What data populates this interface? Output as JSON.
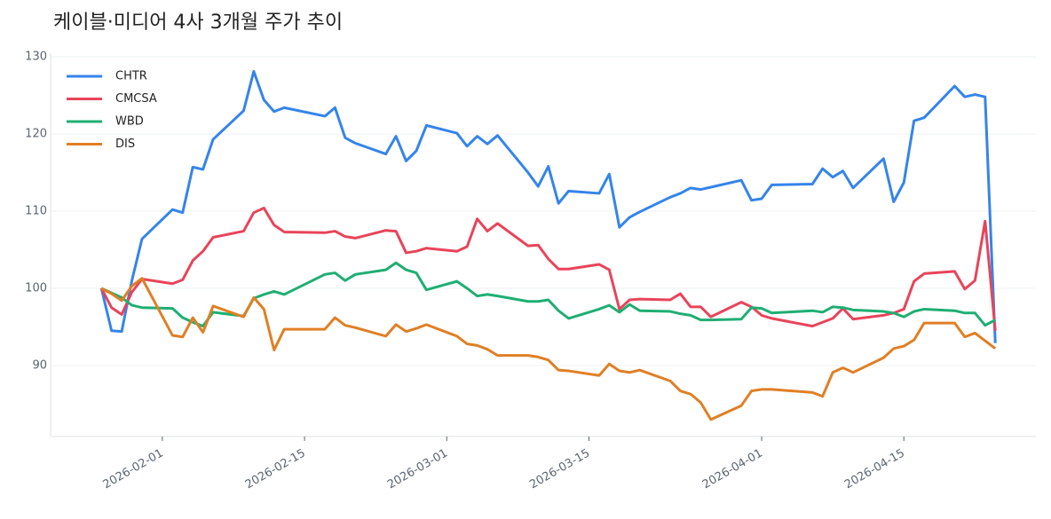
{
  "chart_data": {
    "type": "line",
    "title": "케이블·미디어 4사 3개월 주가 추이",
    "x": [
      "2026-01-26",
      "2026-01-27",
      "2026-01-28",
      "2026-01-29",
      "2026-01-30",
      "2026-02-02",
      "2026-02-03",
      "2026-02-04",
      "2026-02-05",
      "2026-02-06",
      "2026-02-09",
      "2026-02-10",
      "2026-02-11",
      "2026-02-12",
      "2026-02-13",
      "2026-02-17",
      "2026-02-18",
      "2026-02-19",
      "2026-02-20",
      "2026-02-23",
      "2026-02-24",
      "2026-02-25",
      "2026-02-26",
      "2026-02-27",
      "2026-03-02",
      "2026-03-03",
      "2026-03-04",
      "2026-03-05",
      "2026-03-06",
      "2026-03-09",
      "2026-03-10",
      "2026-03-11",
      "2026-03-12",
      "2026-03-13",
      "2026-03-16",
      "2026-03-17",
      "2026-03-18",
      "2026-03-19",
      "2026-03-20",
      "2026-03-23",
      "2026-03-24",
      "2026-03-25",
      "2026-03-26",
      "2026-03-27",
      "2026-03-30",
      "2026-03-31",
      "2026-04-01",
      "2026-04-02",
      "2026-04-06",
      "2026-04-07",
      "2026-04-08",
      "2026-04-09",
      "2026-04-10",
      "2026-04-13",
      "2026-04-14",
      "2026-04-15",
      "2026-04-16",
      "2026-04-17",
      "2026-04-20",
      "2026-04-21",
      "2026-04-22",
      "2026-04-23",
      "2026-04-24"
    ],
    "series": [
      {
        "name": "CHTR",
        "color": "#3584ea",
        "values": [
          100,
          94.5,
          94.4,
          101,
          106.4,
          110.2,
          109.8,
          115.7,
          115.4,
          119.3,
          123,
          128.1,
          124.4,
          122.9,
          123.4,
          122.3,
          123.4,
          119.5,
          118.8,
          117.4,
          119.7,
          116.5,
          117.8,
          121.1,
          120.1,
          118.4,
          119.7,
          118.7,
          119.8,
          115,
          113.2,
          115.8,
          111,
          112.6,
          112.3,
          114.8,
          107.9,
          109.2,
          109.9,
          111.8,
          112.3,
          113,
          112.8,
          113.1,
          114,
          111.4,
          111.6,
          113.4,
          113.5,
          115.5,
          114.4,
          115.2,
          113,
          116.8,
          111.2,
          113.7,
          121.7,
          122.1,
          126.2,
          124.8,
          125.1,
          124.8,
          92.9
        ]
      },
      {
        "name": "CMCSA",
        "color": "#e8445a",
        "values": [
          100,
          97.5,
          96.6,
          99.5,
          101.2,
          100.6,
          101.1,
          103.6,
          104.8,
          106.6,
          107.4,
          109.8,
          110.4,
          108.2,
          107.3,
          107.2,
          107.4,
          106.7,
          106.5,
          107.5,
          107.4,
          104.6,
          104.8,
          105.2,
          104.8,
          105.4,
          109,
          107.4,
          108.4,
          105.5,
          105.6,
          103.8,
          102.5,
          102.5,
          103.1,
          102.4,
          97.3,
          98.5,
          98.6,
          98.5,
          99.3,
          97.6,
          97.6,
          96.3,
          98.2,
          97.6,
          96.5,
          96.1,
          95.1,
          95.6,
          96.1,
          97.4,
          96,
          96.5,
          96.8,
          97.3,
          100.9,
          101.9,
          102.2,
          99.9,
          101,
          108.7,
          94.5
        ]
      },
      {
        "name": "WBD",
        "color": "#1fae72",
        "values": [
          100,
          99.4,
          98.8,
          97.8,
          97.5,
          97.4,
          96.2,
          95.6,
          95.1,
          96.9,
          96.4,
          98.7,
          99.2,
          99.6,
          99.2,
          101.8,
          102,
          101,
          101.8,
          102.4,
          103.3,
          102.4,
          102,
          99.8,
          100.9,
          100,
          99,
          99.2,
          99,
          98.3,
          98.3,
          98.5,
          97.1,
          96.1,
          97.3,
          97.8,
          96.9,
          97.9,
          97.1,
          97,
          96.7,
          96.5,
          95.9,
          95.9,
          96,
          97.5,
          97.4,
          96.8,
          97.1,
          96.9,
          97.6,
          97.5,
          97.2,
          97,
          96.8,
          96.3,
          97,
          97.3,
          97.1,
          96.8,
          96.8,
          95.2,
          95.9
        ]
      },
      {
        "name": "DIS",
        "color": "#e07f24",
        "values": [
          100,
          99.3,
          98.4,
          100.3,
          101.3,
          93.9,
          93.7,
          96.2,
          94.3,
          97.7,
          96.3,
          98.8,
          97.3,
          92,
          94.7,
          94.7,
          96.2,
          95.2,
          94.9,
          93.8,
          95.3,
          94.4,
          94.8,
          95.3,
          93.8,
          92.8,
          92.6,
          92.1,
          91.3,
          91.3,
          91.1,
          90.7,
          89.4,
          89.3,
          88.7,
          90.2,
          89.3,
          89.1,
          89.4,
          88,
          86.7,
          86.3,
          85.2,
          83,
          84.8,
          86.7,
          86.9,
          86.9,
          86.5,
          86,
          89.1,
          89.7,
          89.1,
          91,
          92.2,
          92.5,
          93.3,
          95.5,
          95.5,
          93.7,
          94.2,
          93.2,
          92.2
        ]
      }
    ],
    "xlim": [
      "2026-01-21",
      "2026-04-28"
    ],
    "xticks": [
      "2026-02-01",
      "2026-02-15",
      "2026-03-01",
      "2026-03-15",
      "2026-04-01",
      "2026-04-15"
    ],
    "ylim": [
      80.8,
      130.5
    ],
    "yticks": [
      90,
      100,
      110,
      120,
      130
    ],
    "grid": true,
    "legend": "upper left"
  }
}
